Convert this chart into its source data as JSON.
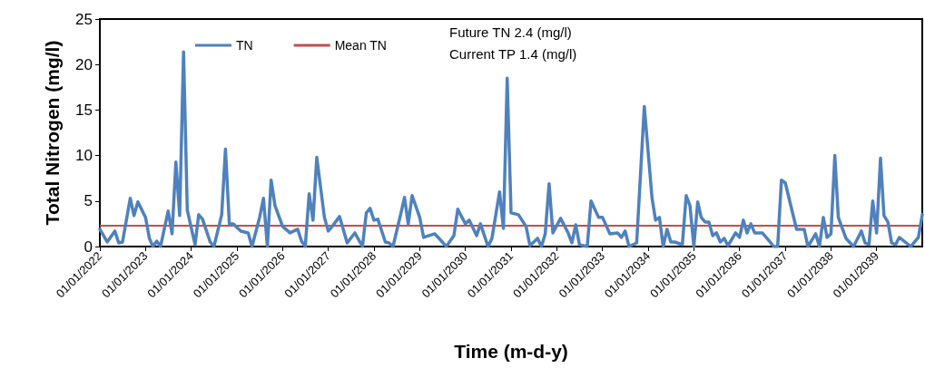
{
  "chart_data": {
    "type": "line",
    "xlabel": "Time (m-d-y)",
    "ylabel": "Total Nitrogen (mg/l)",
    "annotations": [
      "Future TN 2.4 (mg/l)",
      "Current TP 1.4 (mg/l)"
    ],
    "xlim": [
      "2022-01-01",
      "2040-01-01"
    ],
    "xticks": [
      {
        "value": "2022-01-01",
        "label": "01/01/2022"
      },
      {
        "value": "2023-01-01",
        "label": "01/01/2023"
      },
      {
        "value": "2024-01-01",
        "label": "01/01/2024"
      },
      {
        "value": "2025-01-01",
        "label": "01/01/2025"
      },
      {
        "value": "2026-01-01",
        "label": "01/01/2026"
      },
      {
        "value": "2027-01-01",
        "label": "01/01/2027"
      },
      {
        "value": "2028-01-01",
        "label": "01/01/2028"
      },
      {
        "value": "2029-01-01",
        "label": "01/01/2029"
      },
      {
        "value": "2030-01-01",
        "label": "01/01/2030"
      },
      {
        "value": "2031-01-01",
        "label": "01/01/2031"
      },
      {
        "value": "2032-01-01",
        "label": "01/01/2032"
      },
      {
        "value": "2033-01-01",
        "label": "01/01/2033"
      },
      {
        "value": "2034-01-01",
        "label": "01/01/2034"
      },
      {
        "value": "2035-01-01",
        "label": "01/01/2035"
      },
      {
        "value": "2036-01-01",
        "label": "01/01/2036"
      },
      {
        "value": "2037-01-01",
        "label": "01/01/2037"
      },
      {
        "value": "2038-01-01",
        "label": "01/01/2038"
      },
      {
        "value": "2039-01-01",
        "label": "01/01/2039"
      }
    ],
    "ylim": [
      0,
      25
    ],
    "yticks": [
      0,
      5,
      10,
      15,
      20,
      25
    ],
    "grid": false,
    "legend": "top left",
    "marker": "none",
    "line_style": "solid",
    "series": [
      {
        "name": "TN",
        "color": "#4f81bd",
        "x": [
          "2022-01",
          "2022-03",
          "2022-05",
          "2022-06",
          "2022-07",
          "2022-09",
          "2022-10",
          "2022-11",
          "2023-01",
          "2023-02",
          "2023-03",
          "2023-04",
          "2023-05",
          "2023-07",
          "2023-08",
          "2023-09",
          "2023-10",
          "2023-11",
          "2023-12",
          "2024-02",
          "2024-03",
          "2024-04",
          "2024-06",
          "2024-07",
          "2024-09",
          "2024-10",
          "2024-11",
          "2024-12",
          "2025-02",
          "2025-04",
          "2025-05",
          "2025-07",
          "2025-08",
          "2025-09",
          "2025-10",
          "2025-11",
          "2026-01",
          "2026-03",
          "2026-05",
          "2026-06",
          "2026-07",
          "2026-08",
          "2026-09",
          "2026-10",
          "2026-12",
          "2027-01",
          "2027-02",
          "2027-04",
          "2027-06",
          "2027-08",
          "2027-10",
          "2027-11",
          "2027-12",
          "2028-01",
          "2028-02",
          "2028-04",
          "2028-05",
          "2028-06",
          "2028-08",
          "2028-09",
          "2028-10",
          "2028-11",
          "2029-01",
          "2029-02",
          "2029-05",
          "2029-07",
          "2029-08",
          "2029-10",
          "2029-11",
          "2030-01",
          "2030-02",
          "2030-04",
          "2030-05",
          "2030-07",
          "2030-08",
          "2030-10",
          "2030-11",
          "2030-12",
          "2031-01",
          "2031-03",
          "2031-05",
          "2031-06",
          "2031-08",
          "2031-09",
          "2031-10",
          "2031-11",
          "2031-12",
          "2032-02",
          "2032-04",
          "2032-05",
          "2032-06",
          "2032-07",
          "2032-09",
          "2032-10",
          "2032-12",
          "2033-01",
          "2033-03",
          "2033-05",
          "2033-06",
          "2033-07",
          "2033-08",
          "2033-10",
          "2033-12",
          "2034-02",
          "2034-03",
          "2034-04",
          "2034-05",
          "2034-06",
          "2034-07",
          "2034-08",
          "2034-10",
          "2034-11",
          "2034-12",
          "2035-01",
          "2035-02",
          "2035-03",
          "2035-04",
          "2035-05",
          "2035-06",
          "2035-07",
          "2035-08",
          "2035-09",
          "2035-10",
          "2035-12",
          "2036-01",
          "2036-02",
          "2036-03",
          "2036-04",
          "2036-05",
          "2036-07",
          "2036-09",
          "2036-10",
          "2036-11",
          "2036-12",
          "2037-01",
          "2037-04",
          "2037-06",
          "2037-07",
          "2037-09",
          "2037-10",
          "2037-11",
          "2037-12",
          "2038-01",
          "2038-02",
          "2038-03",
          "2038-05",
          "2038-07",
          "2038-09",
          "2038-10",
          "2038-11",
          "2038-12",
          "2039-01",
          "2039-02",
          "2039-03",
          "2039-04",
          "2039-05",
          "2039-06",
          "2039-07",
          "2039-10",
          "2039-11",
          "2039-12",
          "2040-01"
        ],
        "values": [
          1.9,
          0.5,
          1.7,
          0.4,
          0.5,
          5.3,
          3.4,
          4.9,
          3.2,
          0.9,
          0,
          0.6,
          0,
          3.9,
          1.4,
          9.3,
          3.4,
          21.4,
          4.0,
          0.2,
          3.5,
          3.0,
          0.5,
          0,
          3.5,
          10.7,
          2.5,
          2.5,
          1.7,
          1.5,
          0,
          3.2,
          5.3,
          0,
          7.3,
          4.5,
          2.2,
          1.5,
          1.9,
          0.6,
          0,
          5.8,
          2.9,
          9.8,
          3.2,
          1.7,
          2.2,
          3.3,
          0.4,
          1.5,
          0,
          3.7,
          4.2,
          2.9,
          3.0,
          0.5,
          0.4,
          0,
          3.5,
          5.4,
          2.5,
          5.6,
          3.2,
          1.0,
          1.4,
          0.5,
          0,
          1.2,
          4.1,
          2.5,
          2.9,
          1.2,
          2.5,
          0,
          0.9,
          6.0,
          2.0,
          18.5,
          3.7,
          3.5,
          2.2,
          0.1,
          0.9,
          0,
          1.4,
          6.9,
          1.5,
          3.1,
          1.5,
          0.4,
          2.4,
          0.2,
          0,
          5.0,
          3.2,
          3.2,
          1.4,
          1.5,
          1.0,
          1.7,
          0,
          0.4,
          15.4,
          5.3,
          2.9,
          3.2,
          0,
          1.9,
          0.5,
          0.5,
          0.2,
          5.6,
          4.5,
          0,
          4.9,
          3.2,
          2.7,
          2.7,
          1.2,
          1.5,
          0.5,
          0.9,
          0.1,
          1.5,
          1.0,
          2.9,
          1.5,
          2.5,
          1.5,
          1.5,
          0.5,
          0,
          0,
          7.3,
          7.0,
          1.9,
          1.9,
          0,
          1.4,
          0,
          3.2,
          1.0,
          1.4,
          10.0,
          3.2,
          0.9,
          0,
          1.7,
          0.4,
          0.2,
          5.0,
          1.5,
          9.7,
          3.4,
          2.7,
          0.4,
          0.2,
          1.0,
          0,
          0.5,
          1.0,
          3.5
        ]
      }
    ],
    "ref_lines": [
      {
        "axis": "y",
        "value": 2.3,
        "label": "Mean TN",
        "color": "#c0504d"
      }
    ]
  }
}
